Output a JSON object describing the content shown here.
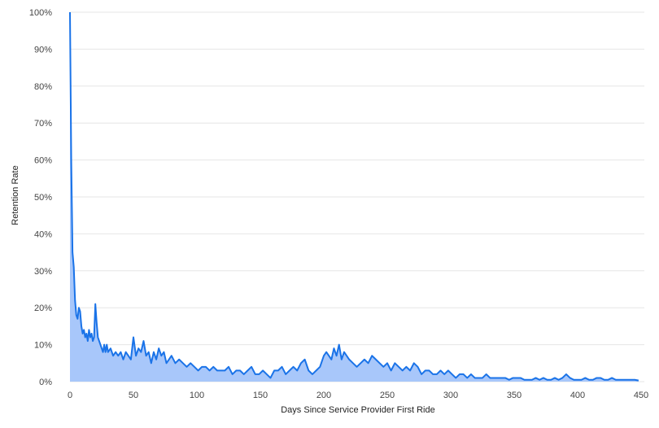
{
  "chart_data": {
    "type": "area",
    "title": "",
    "xlabel": "Days Since Service Provider First Ride",
    "ylabel": "Retention Rate",
    "xlim": [
      0,
      450
    ],
    "ylim": [
      0,
      100
    ],
    "x_ticks": [
      0,
      50,
      100,
      150,
      200,
      250,
      300,
      350,
      400,
      450
    ],
    "x_tick_labels": [
      "0",
      "50",
      "100",
      "150",
      "200",
      "250",
      "300",
      "350",
      "400",
      "450"
    ],
    "y_ticks": [
      0,
      10,
      20,
      30,
      40,
      50,
      60,
      70,
      80,
      90,
      100
    ],
    "y_tick_labels": [
      "0%",
      "10%",
      "20%",
      "30%",
      "40%",
      "50%",
      "60%",
      "70%",
      "80%",
      "90%",
      "100%"
    ],
    "grid": "horizontal",
    "legend": "none",
    "colors": {
      "line": "#1a73e8",
      "fill": "#a8c7fa"
    },
    "series": [
      {
        "x": [
          0,
          1,
          2,
          3,
          4,
          5,
          6,
          7,
          8,
          9,
          10,
          11,
          12,
          13,
          14,
          15,
          16,
          17,
          18,
          19,
          20,
          21,
          22,
          23,
          24,
          25,
          26,
          27,
          28,
          29,
          30,
          32,
          34,
          36,
          38,
          40,
          42,
          44,
          46,
          48,
          50,
          52,
          54,
          56,
          58,
          60,
          62,
          64,
          66,
          68,
          70,
          72,
          74,
          76,
          78,
          80,
          83,
          86,
          89,
          92,
          95,
          98,
          101,
          104,
          107,
          110,
          113,
          116,
          119,
          122,
          125,
          128,
          131,
          134,
          137,
          140,
          143,
          146,
          149,
          152,
          155,
          158,
          161,
          164,
          167,
          170,
          173,
          176,
          179,
          182,
          185,
          188,
          191,
          194,
          197,
          200,
          202,
          204,
          206,
          208,
          210,
          212,
          214,
          216,
          218,
          220,
          223,
          226,
          229,
          232,
          235,
          238,
          241,
          244,
          247,
          250,
          253,
          256,
          259,
          262,
          265,
          268,
          271,
          274,
          277,
          280,
          283,
          286,
          289,
          292,
          295,
          298,
          301,
          304,
          307,
          310,
          313,
          316,
          319,
          322,
          325,
          328,
          331,
          334,
          337,
          340,
          343,
          346,
          349,
          352,
          355,
          358,
          361,
          364,
          367,
          370,
          373,
          376,
          379,
          382,
          385,
          388,
          391,
          394,
          397,
          400,
          403,
          406,
          409,
          412,
          415,
          418,
          421,
          424,
          427,
          430,
          433,
          436,
          439,
          442,
          445,
          448
        ],
        "values": [
          100,
          60,
          35,
          31,
          22,
          18,
          17,
          20,
          19,
          15,
          13,
          14,
          12,
          13,
          11,
          14,
          12,
          13,
          11,
          12,
          21,
          16,
          12,
          11,
          10,
          9,
          8,
          10,
          8,
          10,
          8,
          9,
          7,
          8,
          7,
          8,
          6,
          8,
          7,
          6,
          12,
          7,
          9,
          8,
          11,
          7,
          8,
          5,
          8,
          6,
          9,
          7,
          8,
          5,
          6,
          7,
          5,
          6,
          5,
          4,
          5,
          4,
          3,
          4,
          4,
          3,
          4,
          3,
          3,
          3,
          4,
          2,
          3,
          3,
          2,
          3,
          4,
          2,
          2,
          3,
          2,
          1,
          3,
          3,
          4,
          2,
          3,
          4,
          3,
          5,
          6,
          3,
          2,
          3,
          4,
          7,
          8,
          7,
          6,
          9,
          7,
          10,
          6,
          8,
          7,
          6,
          5,
          4,
          5,
          6,
          5,
          7,
          6,
          5,
          4,
          5,
          3,
          5,
          4,
          3,
          4,
          3,
          5,
          4,
          2,
          3,
          3,
          2,
          2,
          3,
          2,
          3,
          2,
          1,
          2,
          2,
          1,
          2,
          1,
          1,
          1,
          2,
          1,
          1,
          1,
          1,
          1,
          0.5,
          1,
          1,
          1,
          0.5,
          0.5,
          0.5,
          1,
          0.5,
          1,
          0.5,
          0.5,
          1,
          0.5,
          1,
          2,
          1,
          0.5,
          0.5,
          0.5,
          1,
          0.5,
          0.5,
          1,
          1,
          0.5,
          0.5,
          1,
          0.5,
          0.5,
          0.5,
          0.5,
          0.5,
          0.5,
          0.3
        ]
      }
    ]
  }
}
